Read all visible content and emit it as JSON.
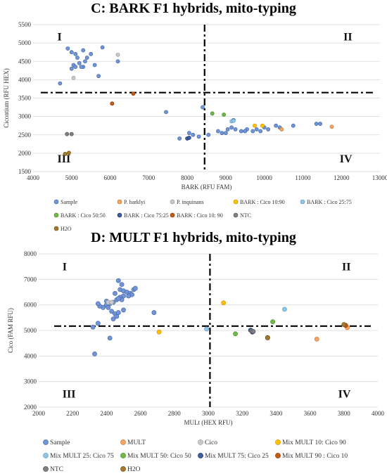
{
  "chart_data": [
    {
      "type": "scatter",
      "title": "C: BARK F1 hybrids, mito-typing",
      "xlabel": "BARK (RFU FAM)",
      "ylabel": "Cicontium (RFU HEX)",
      "xlim": [
        4000,
        13000
      ],
      "ylim": [
        1500,
        5500
      ],
      "xticks": [
        4000,
        5000,
        6000,
        7000,
        8000,
        9000,
        10000,
        11000,
        12000,
        13000
      ],
      "yticks": [
        1500,
        2000,
        2500,
        3000,
        3500,
        4000,
        4500,
        5000,
        5500
      ],
      "threshold_x": 8450,
      "threshold_y": 3650,
      "quadrants": [
        "I",
        "II",
        "III",
        "IV"
      ],
      "grid": "horizontal",
      "legend_position": "bottom",
      "series": [
        {
          "name": "Sample",
          "color": "#7094d6",
          "points": [
            [
              4900,
              4850
            ],
            [
              5000,
              4750
            ],
            [
              5150,
              4600
            ],
            [
              5100,
              4700
            ],
            [
              5300,
              4800
            ],
            [
              5400,
              4600
            ],
            [
              5500,
              4700
            ],
            [
              5800,
              4880
            ],
            [
              5200,
              4450
            ],
            [
              5300,
              4350
            ],
            [
              5000,
              4300
            ],
            [
              5050,
              4400
            ],
            [
              5600,
              4400
            ],
            [
              5350,
              4500
            ],
            [
              5100,
              4350
            ],
            [
              4700,
              3900
            ],
            [
              5700,
              4100
            ],
            [
              6200,
              4500
            ],
            [
              5250,
              4350
            ],
            [
              8400,
              3250
            ],
            [
              7450,
              3120
            ],
            [
              7800,
              2400
            ],
            [
              8050,
              2550
            ],
            [
              8150,
              2500
            ],
            [
              8300,
              2450
            ],
            [
              8550,
              2500
            ],
            [
              8800,
              2600
            ],
            [
              8900,
              2550
            ],
            [
              9050,
              2650
            ],
            [
              9150,
              2700
            ],
            [
              9250,
              2650
            ],
            [
              9400,
              2600
            ],
            [
              9550,
              2650
            ],
            [
              9700,
              2600
            ],
            [
              9800,
              2650
            ],
            [
              10000,
              2700
            ],
            [
              10100,
              2650
            ],
            [
              10300,
              2750
            ],
            [
              10400,
              2700
            ],
            [
              10750,
              2750
            ],
            [
              11350,
              2800
            ],
            [
              11450,
              2800
            ],
            [
              9200,
              2900
            ],
            [
              9000,
              2550
            ],
            [
              9500,
              2600
            ],
            [
              9900,
              2600
            ]
          ]
        },
        {
          "name": "P. barklyi",
          "color": "#f4a460",
          "points": [
            [
              11750,
              2720
            ],
            [
              10450,
              2650
            ]
          ]
        },
        {
          "name": "P. inquinans",
          "color": "#c8c8c8",
          "points": [
            [
              6200,
              4680
            ],
            [
              5050,
              4050
            ]
          ]
        },
        {
          "name": "BARK : Cico 10:90",
          "color": "#ffc000",
          "points": [
            [
              9750,
              2750
            ],
            [
              9950,
              2750
            ]
          ]
        },
        {
          "name": "BARK : Cico 25:75",
          "color": "#8fc6e8",
          "points": [
            [
              9150,
              2870
            ],
            [
              9200,
              2880
            ]
          ]
        },
        {
          "name": "BARK : Cico 50:50",
          "color": "#70b84a",
          "points": [
            [
              8650,
              3080
            ],
            [
              8950,
              3050
            ]
          ]
        },
        {
          "name": "BARK : Cico 75:25",
          "color": "#3e5e9e",
          "points": [
            [
              8000,
              2400
            ],
            [
              8050,
              2420
            ]
          ]
        },
        {
          "name": "BARK : Cico 10: 90",
          "color": "#c55a11",
          "points": [
            [
              6050,
              3350
            ],
            [
              6600,
              3620
            ]
          ]
        },
        {
          "name": "NTC",
          "color": "#7f7f7f",
          "points": [
            [
              4880,
              2520
            ],
            [
              5000,
              2520
            ]
          ]
        },
        {
          "name": "H2O",
          "color": "#a07a30",
          "points": [
            [
              4830,
              1980
            ],
            [
              4930,
              2010
            ]
          ]
        }
      ]
    },
    {
      "type": "scatter",
      "title": "D: MULT F1 hybrids, mito-typing",
      "xlabel": "MULt (HEX RFU)",
      "ylabel": "Cico (FAM RFU)",
      "xlim": [
        2000,
        4000
      ],
      "ylim": [
        2000,
        8000
      ],
      "xticks": [
        2000,
        2200,
        2400,
        2600,
        2800,
        3000,
        3200,
        3400,
        3600,
        3800,
        4000
      ],
      "yticks": [
        2000,
        3000,
        4000,
        5000,
        6000,
        7000,
        8000
      ],
      "threshold_x": 3010,
      "threshold_y": 5170,
      "quadrants": [
        "I",
        "II",
        "III",
        "IV"
      ],
      "grid": "horizontal",
      "legend_position": "bottom",
      "series": [
        {
          "name": "Sample",
          "color": "#7094d6",
          "points": [
            [
              2470,
              6950
            ],
            [
              2490,
              6800
            ],
            [
              2450,
              6450
            ],
            [
              2480,
              6600
            ],
            [
              2500,
              6550
            ],
            [
              2520,
              6500
            ],
            [
              2540,
              6450
            ],
            [
              2560,
              6600
            ],
            [
              2570,
              6650
            ],
            [
              2550,
              6400
            ],
            [
              2500,
              6350
            ],
            [
              2480,
              6300
            ],
            [
              2460,
              6200
            ],
            [
              2440,
              6100
            ],
            [
              2420,
              6050
            ],
            [
              2400,
              6000
            ],
            [
              2380,
              5900
            ],
            [
              2360,
              5950
            ],
            [
              2350,
              6050
            ],
            [
              2410,
              5900
            ],
            [
              2430,
              5750
            ],
            [
              2450,
              5650
            ],
            [
              2440,
              5450
            ],
            [
              2460,
              5550
            ],
            [
              2470,
              5700
            ],
            [
              2500,
              5800
            ],
            [
              2490,
              6200
            ],
            [
              2470,
              6250
            ],
            [
              2680,
              5700
            ],
            [
              2420,
              4700
            ],
            [
              2330,
              4080
            ],
            [
              2350,
              5280
            ],
            [
              2320,
              5130
            ],
            [
              2530,
              6350
            ],
            [
              2400,
              6150
            ]
          ]
        },
        {
          "name": "MULT",
          "color": "#f4a460",
          "points": [
            [
              3640,
              4660
            ],
            [
              3820,
              5110
            ]
          ]
        },
        {
          "name": "Cico",
          "color": "#c8c8c8",
          "points": [
            [
              2410,
              6100
            ],
            [
              2430,
              6100
            ]
          ]
        },
        {
          "name": "Mix MULT 10: Cico 90",
          "color": "#ffc000",
          "points": [
            [
              3090,
              6080
            ],
            [
              2710,
              4940
            ]
          ]
        },
        {
          "name": "Mix MULT 25: Cico 75",
          "color": "#8fc6e8",
          "points": [
            [
              3450,
              5830
            ],
            [
              2990,
              5060
            ]
          ]
        },
        {
          "name": "Mix MULT 50: Cico 50",
          "color": "#70b84a",
          "points": [
            [
              3380,
              5340
            ],
            [
              3160,
              4870
            ]
          ]
        },
        {
          "name": "Mix MULT 75: Cico 25",
          "color": "#3e5e9e",
          "points": [
            [
              3250,
              5010
            ],
            [
              3260,
              4940
            ]
          ]
        },
        {
          "name": "Mix MULT 90 : Cico 10",
          "color": "#c55a11",
          "points": [
            [
              3350,
              4720
            ],
            [
              3810,
              5200
            ]
          ]
        },
        {
          "name": "NTC",
          "color": "#7f7f7f",
          "points": [
            [
              3255,
              4980
            ],
            [
              3265,
              4960
            ]
          ]
        },
        {
          "name": "H2O",
          "color": "#a07a30",
          "points": [
            [
              3800,
              5230
            ],
            [
              3350,
              4710
            ]
          ]
        }
      ]
    }
  ]
}
